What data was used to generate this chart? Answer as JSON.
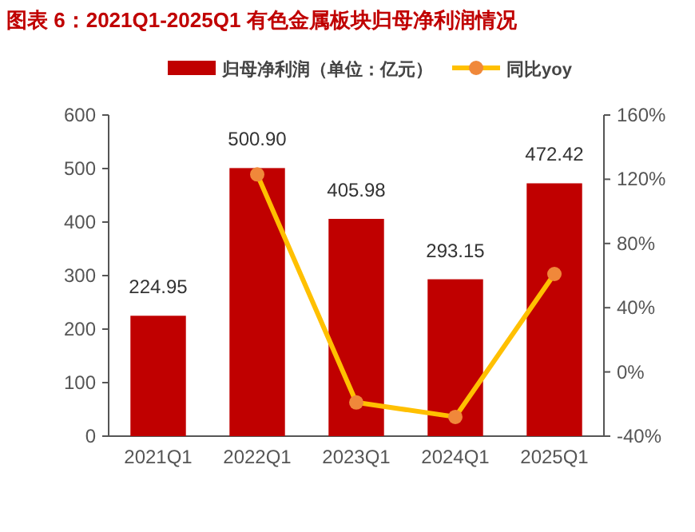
{
  "chart_data": {
    "type": "bar",
    "title": "图表 6：2021Q1-2025Q1 有色金属板块归母净利润情况",
    "categories": [
      "2021Q1",
      "2022Q1",
      "2023Q1",
      "2024Q1",
      "2025Q1"
    ],
    "series": [
      {
        "name": "归母净利润（单位：亿元）",
        "color": "#c00000",
        "values": [
          224.95,
          500.9,
          405.98,
          293.15,
          472.42
        ],
        "value_labels": [
          "224.95",
          "500.90",
          "405.98",
          "293.15",
          "472.42"
        ]
      },
      {
        "name": "同比yoy",
        "type": "line",
        "axis": "y2",
        "color": "#ffc000",
        "values": [
          null,
          123,
          -19,
          -28,
          61
        ]
      }
    ],
    "ylim": [
      0,
      600
    ],
    "yticks": [
      0,
      100,
      200,
      300,
      400,
      500,
      600
    ],
    "y2lim": [
      -40,
      160
    ],
    "y2ticks": [
      {
        "value": -40,
        "label": "-40%"
      },
      {
        "value": 0,
        "label": "0%"
      },
      {
        "value": 40,
        "label": "40%"
      },
      {
        "value": 80,
        "label": "80%"
      },
      {
        "value": 120,
        "label": "120%"
      },
      {
        "value": 160,
        "label": "160%"
      }
    ],
    "legend": "top",
    "grid": false,
    "marker": "circle"
  }
}
